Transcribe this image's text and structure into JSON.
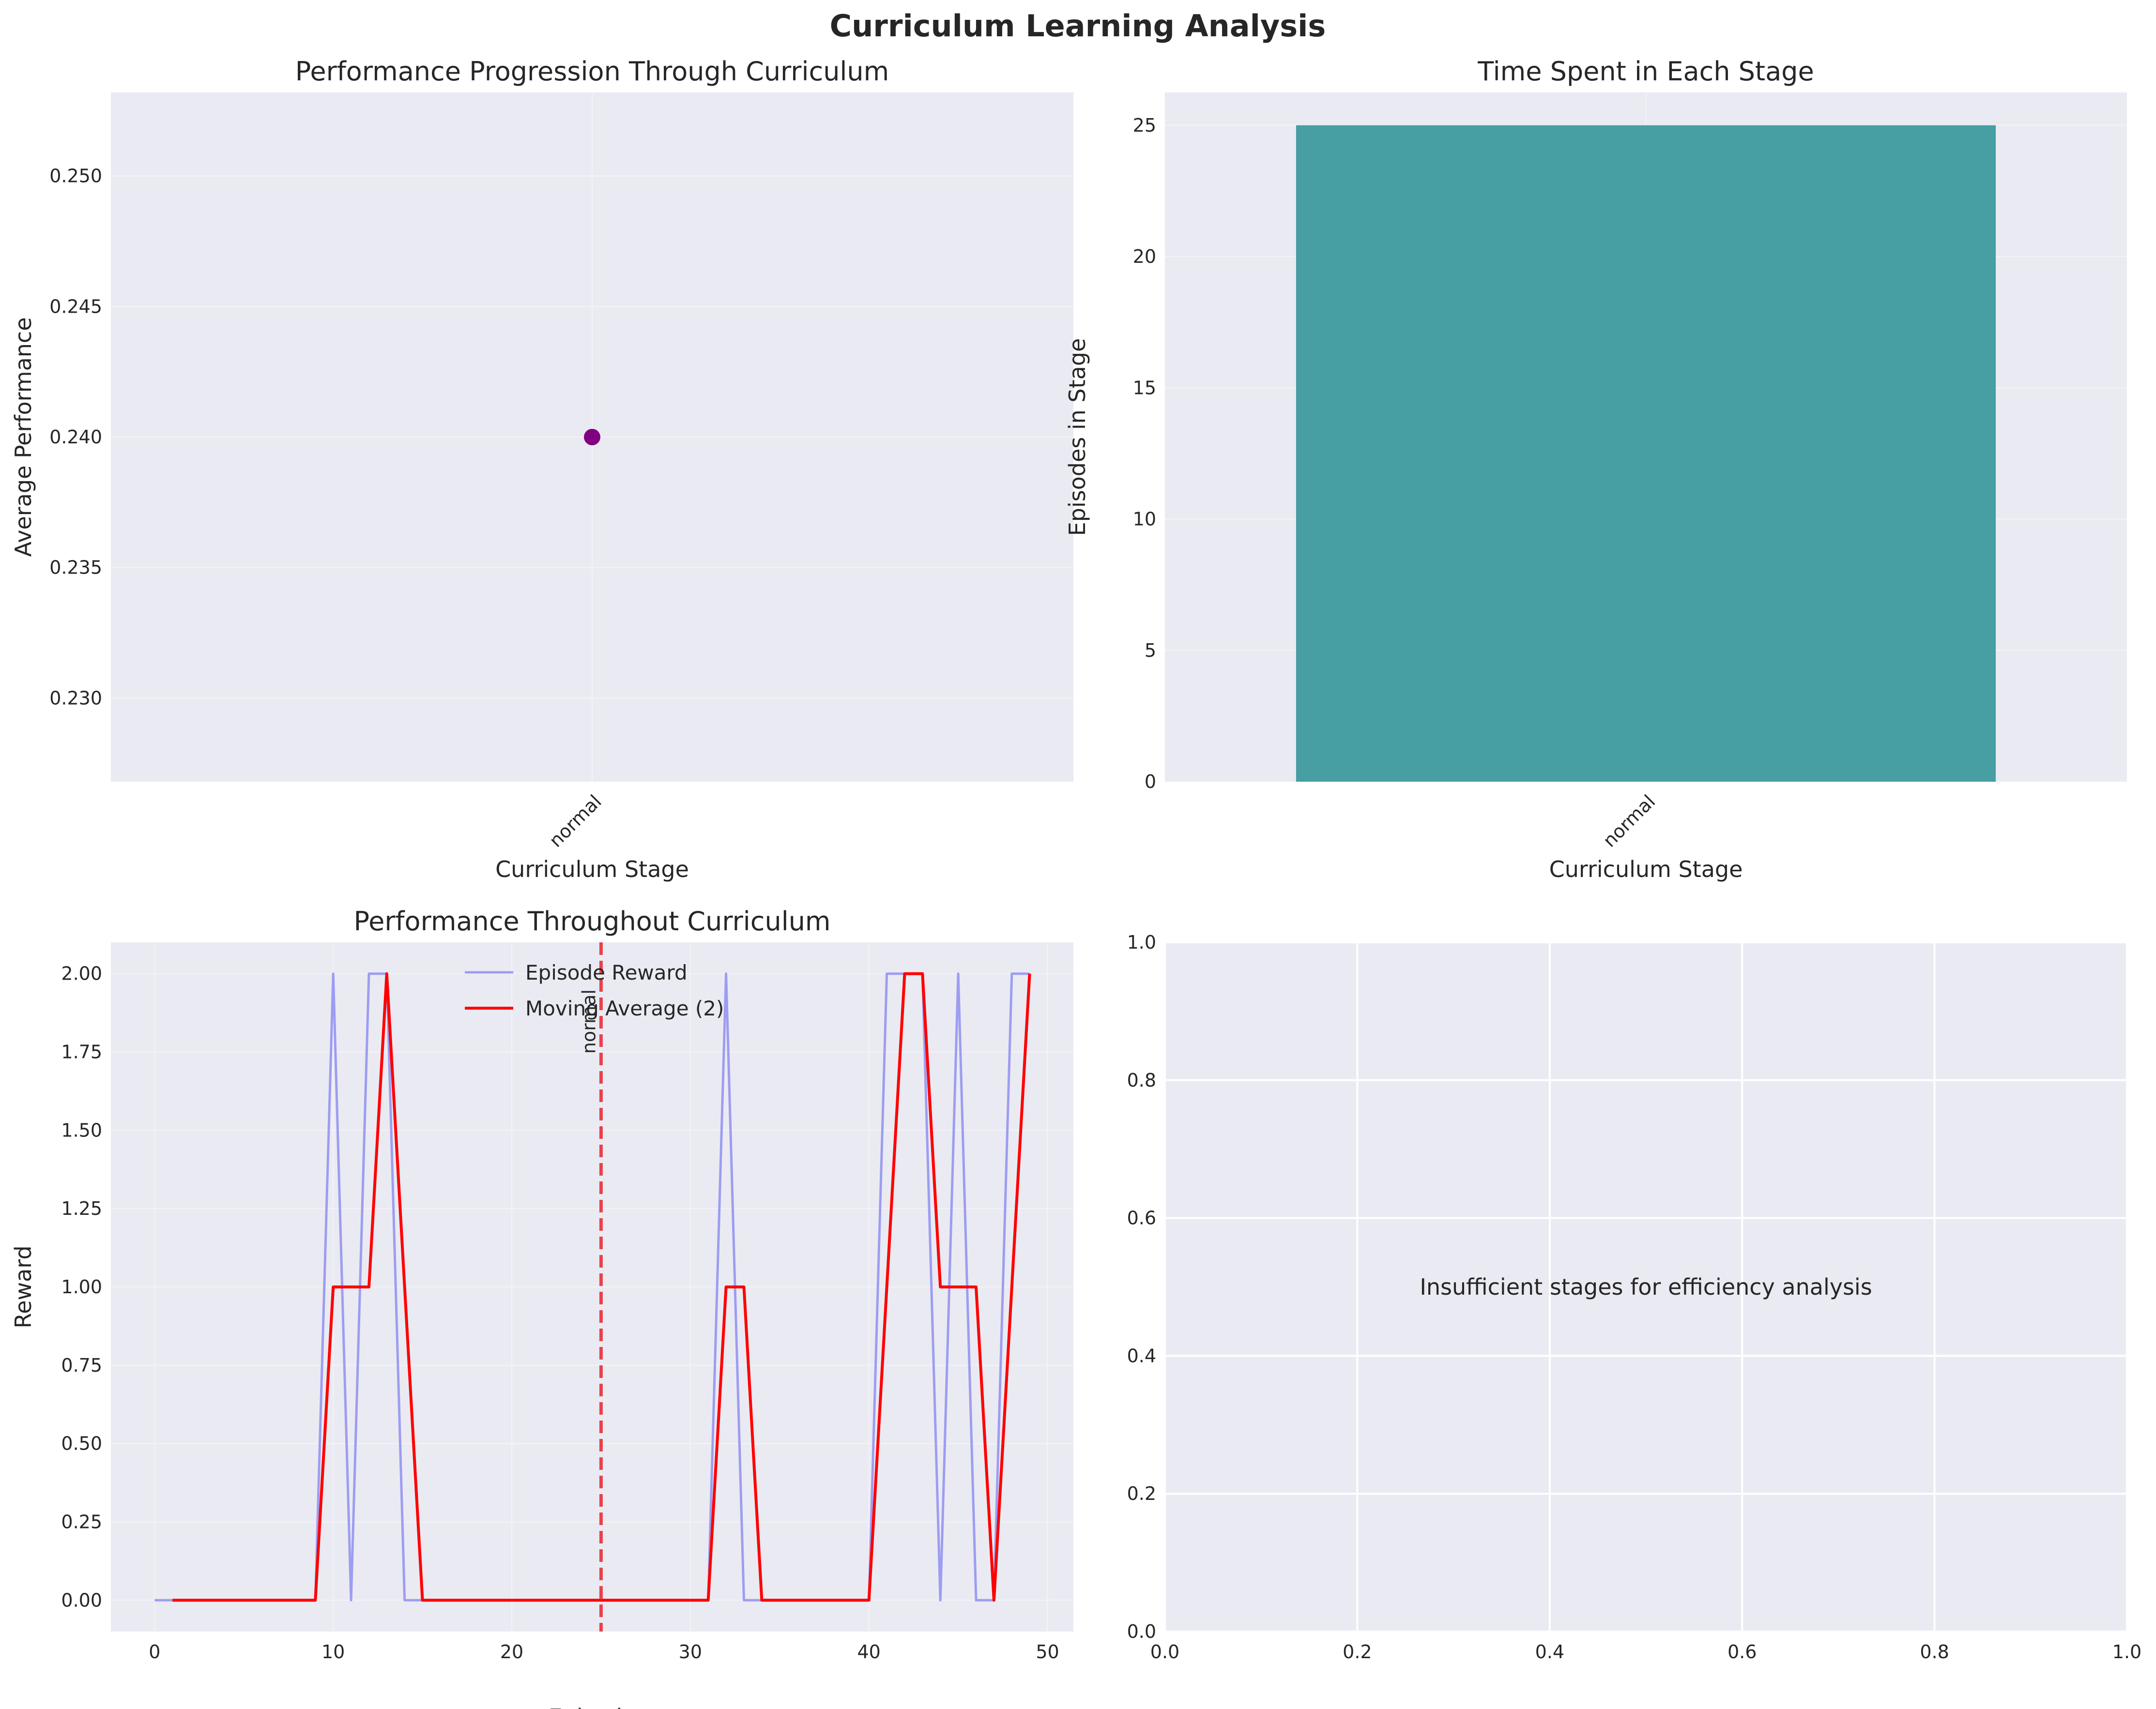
{
  "figure": {
    "suptitle": "Curriculum Learning Analysis"
  },
  "chart_data": [
    {
      "type": "scatter",
      "title": "Performance Progression Through Curriculum",
      "xlabel": "Curriculum Stage",
      "ylabel": "Average Performance",
      "categories": [
        "normal"
      ],
      "values": [
        0.24
      ],
      "ylim": [
        0.2268,
        0.2532
      ],
      "yticks": [
        0.23,
        0.235,
        0.24,
        0.245,
        0.25
      ],
      "ytick_labels": [
        "0.230",
        "0.235",
        "0.240",
        "0.245",
        "0.250"
      ],
      "xtick_rotation": 45,
      "marker_color": "#800080",
      "grid": true
    },
    {
      "type": "bar",
      "title": "Time Spent in Each Stage",
      "xlabel": "Curriculum Stage",
      "ylabel": "Episodes in Stage",
      "categories": [
        "normal"
      ],
      "values": [
        25
      ],
      "ylim": [
        0,
        26.25
      ],
      "yticks": [
        0,
        5,
        10,
        15,
        20,
        25
      ],
      "ytick_labels": [
        "0",
        "5",
        "10",
        "15",
        "20",
        "25"
      ],
      "xtick_rotation": 45,
      "bar_color": "#479ea3",
      "grid": true
    },
    {
      "type": "line",
      "title": "Performance Throughout Curriculum",
      "xlabel": "Episode",
      "ylabel": "Reward",
      "xlim": [
        -2.45,
        51.45
      ],
      "ylim": [
        -0.1,
        2.1
      ],
      "xticks": [
        0,
        10,
        20,
        30,
        40,
        50
      ],
      "xtick_labels": [
        "0",
        "10",
        "20",
        "30",
        "40",
        "50"
      ],
      "yticks": [
        0,
        0.25,
        0.5,
        0.75,
        1.0,
        1.25,
        1.5,
        1.75,
        2.0
      ],
      "ytick_labels": [
        "0.00",
        "0.25",
        "0.50",
        "0.75",
        "1.00",
        "1.25",
        "1.50",
        "1.75",
        "2.00"
      ],
      "legend_position": "upper center",
      "series": [
        {
          "name": "Episode Reward",
          "color": "#9d9df2",
          "x": [
            0,
            1,
            2,
            3,
            4,
            5,
            6,
            7,
            8,
            9,
            10,
            11,
            12,
            13,
            14,
            15,
            16,
            17,
            18,
            19,
            20,
            21,
            22,
            23,
            24,
            25,
            26,
            27,
            28,
            29,
            30,
            31,
            32,
            33,
            34,
            35,
            36,
            37,
            38,
            39,
            40,
            41,
            42,
            43,
            44,
            45,
            46,
            47,
            48,
            49
          ],
          "y": [
            0,
            0,
            0,
            0,
            0,
            0,
            0,
            0,
            0,
            0,
            2,
            0,
            2,
            2,
            0,
            0,
            0,
            0,
            0,
            0,
            0,
            0,
            0,
            0,
            0,
            0,
            0,
            0,
            0,
            0,
            0,
            0,
            2,
            0,
            0,
            0,
            0,
            0,
            0,
            0,
            0,
            2,
            2,
            2,
            0,
            2,
            0,
            0,
            2,
            2
          ]
        },
        {
          "name": "Moving Average (2)",
          "color": "#ff0000",
          "x": [
            1,
            2,
            3,
            4,
            5,
            6,
            7,
            8,
            9,
            10,
            11,
            12,
            13,
            14,
            15,
            16,
            17,
            18,
            19,
            20,
            21,
            22,
            23,
            24,
            25,
            26,
            27,
            28,
            29,
            30,
            31,
            32,
            33,
            34,
            35,
            36,
            37,
            38,
            39,
            40,
            41,
            42,
            43,
            44,
            45,
            46,
            47,
            48,
            49
          ],
          "y": [
            0,
            0,
            0,
            0,
            0,
            0,
            0,
            0,
            0,
            1,
            1,
            1,
            2,
            1,
            0,
            0,
            0,
            0,
            0,
            0,
            0,
            0,
            0,
            0,
            0,
            0,
            0,
            0,
            0,
            0,
            0,
            1,
            1,
            0,
            0,
            0,
            0,
            0,
            0,
            0,
            1,
            2,
            2,
            1,
            1,
            1,
            0,
            1,
            2
          ]
        }
      ],
      "stage_markers": [
        {
          "x": 25,
          "label": "normal",
          "color": "#e8303a"
        }
      ],
      "grid": true
    },
    {
      "type": "table",
      "message": "Insufficient stages for efficiency analysis",
      "xlim": [
        0,
        1
      ],
      "ylim": [
        0,
        1
      ],
      "xticks": [
        0,
        0.2,
        0.4,
        0.6,
        0.8,
        1.0
      ],
      "xtick_labels": [
        "0.0",
        "0.2",
        "0.4",
        "0.6",
        "0.8",
        "1.0"
      ],
      "yticks": [
        0,
        0.2,
        0.4,
        0.6,
        0.8,
        1.0
      ],
      "ytick_labels": [
        "0.0",
        "0.2",
        "0.4",
        "0.6",
        "0.8",
        "1.0"
      ],
      "grid": true
    }
  ]
}
